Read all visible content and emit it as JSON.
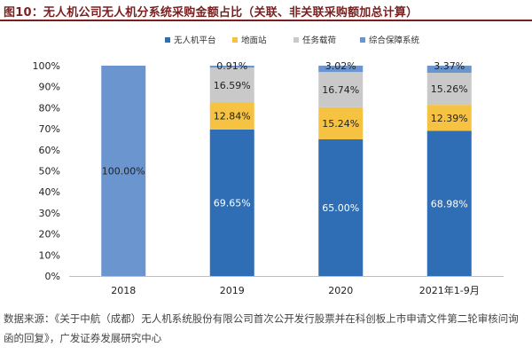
{
  "figure": {
    "title": "图10：无人机公司无人机分系统采购金额占比（关联、非关联采购额加总计算）",
    "source": "数据来源：《关于中航（成都）无人机系统股份有限公司首次公开发行股票并在科创板上市申请文件第二轮审核问询函的回复》，广发证券发展研究中心"
  },
  "chart_data": {
    "type": "bar",
    "stacked": true,
    "categories": [
      "2018",
      "2019",
      "2020",
      "2021年1-9月"
    ],
    "series": [
      {
        "name": "无人机平台",
        "color": "#2f6eb5",
        "values": [
          null,
          69.65,
          65.0,
          68.98
        ]
      },
      {
        "name": "地面站",
        "color": "#f5c242",
        "values": [
          null,
          12.84,
          15.24,
          12.39
        ]
      },
      {
        "name": "任务载荷",
        "color": "#c9c9c9",
        "values": [
          null,
          16.59,
          16.74,
          15.26
        ]
      },
      {
        "name": "综合保障系统",
        "color": "#6b95cf",
        "values": [
          100.0,
          0.91,
          3.02,
          3.37
        ]
      }
    ],
    "value_labels": [
      [
        "",
        "69.65%",
        "65.00%",
        "68.98%"
      ],
      [
        "",
        "12.84%",
        "15.24%",
        "12.39%"
      ],
      [
        "",
        "16.59%",
        "16.74%",
        "15.26%"
      ],
      [
        "100.00%",
        "0.91%",
        "3.02%",
        "3.37%"
      ]
    ],
    "y_ticks": [
      "0%",
      "10%",
      "20%",
      "30%",
      "40%",
      "50%",
      "60%",
      "70%",
      "80%",
      "90%",
      "100%"
    ],
    "ylim": [
      0,
      100
    ],
    "legend_position": "top",
    "grid": false
  }
}
